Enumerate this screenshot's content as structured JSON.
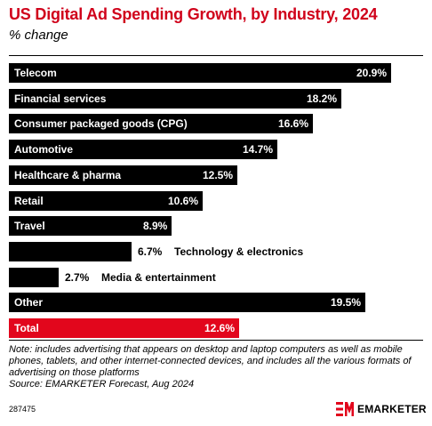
{
  "chart_data": {
    "type": "bar",
    "orientation": "horizontal",
    "title": "US Digital Ad Spending Growth, by Industry, 2024",
    "subtitle": "% change",
    "categories": [
      "Telecom",
      "Financial services",
      "Consumer packaged goods (CPG)",
      "Automotive",
      "Healthcare & pharma",
      "Retail",
      "Travel",
      "Technology & electronics",
      "Media & entertainment",
      "Other",
      "Total"
    ],
    "values": [
      20.9,
      18.2,
      16.6,
      14.7,
      12.5,
      10.6,
      8.9,
      6.7,
      2.7,
      19.5,
      12.6
    ],
    "value_labels": [
      "20.9%",
      "18.2%",
      "16.6%",
      "14.7%",
      "12.5%",
      "10.6%",
      "8.9%",
      "6.7%",
      "2.7%",
      "19.5%",
      "12.6%"
    ],
    "highlight_category": "Total",
    "xlim": [
      0,
      20.9
    ],
    "grid": false,
    "legend": "none"
  },
  "colors": {
    "bar": "#000000",
    "highlight": "#e2061c",
    "title": "#d0021b"
  },
  "footer": {
    "note": "Note: includes advertising that appears on desktop and laptop computers as well as mobile phones, tablets, and other internet-connected devices, and includes all the various formats of advertising on those platforms",
    "source": "Source: EMARKETER Forecast, Aug 2024",
    "chart_id": "287475",
    "brand": "EMARKETER",
    "logo_icon": "em-logo-icon"
  }
}
